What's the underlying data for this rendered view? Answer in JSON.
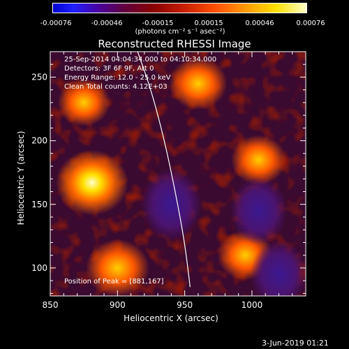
{
  "colorbar": {
    "ticks": [
      "-0.00076",
      "-0.00046",
      "-0.00015",
      "0.00015",
      "0.00046",
      "0.00076"
    ],
    "units": "(photons cm⁻² s⁻¹ asec⁻²)"
  },
  "annotations": {
    "time_range": "25-Sep-2014 04:04:34.000 to 04:10:34.000",
    "detectors": "Detectors: 3F 6F 9F, Att 0",
    "energy": "Energy Range: 12.0 - 25.0 keV",
    "method": "Clean     Total counts: 4.12E+03",
    "peak": "Position of Peak = [881,167]"
  },
  "footer": {
    "timestamp": "3-Jun-2019 01:21"
  },
  "colors": {
    "background": "#000000",
    "text": "#ffffff",
    "limb": "#ffffff"
  },
  "chart_data": {
    "type": "heatmap",
    "title": "Reconstructed RHESSI Image",
    "xlabel": "Heliocentric X (arcsec)",
    "ylabel": "Heliocentric Y (arcsec)",
    "xlim": [
      850,
      1040
    ],
    "ylim": [
      78,
      270
    ],
    "x_ticks": [
      "850",
      "900",
      "950",
      "1000"
    ],
    "y_ticks": [
      "100",
      "150",
      "200",
      "250"
    ],
    "x_tick_values": [
      850,
      900,
      950,
      1000
    ],
    "y_tick_values": [
      100,
      150,
      200,
      250
    ],
    "colormap_range": [
      -0.00076,
      0.00076
    ],
    "peak_position": [
      881,
      167
    ],
    "bright_regions": [
      {
        "x": 881,
        "y": 167,
        "value": 0.00076
      },
      {
        "x": 900,
        "y": 100,
        "value": 0.0006
      },
      {
        "x": 960,
        "y": 245,
        "value": 0.0005
      },
      {
        "x": 1005,
        "y": 185,
        "value": 0.00045
      },
      {
        "x": 995,
        "y": 110,
        "value": 0.00045
      },
      {
        "x": 875,
        "y": 230,
        "value": 0.0004
      }
    ],
    "dark_regions": [
      {
        "x": 940,
        "y": 150,
        "value": -0.00046
      },
      {
        "x": 1005,
        "y": 145,
        "value": -0.0004
      },
      {
        "x": 1020,
        "y": 95,
        "value": -0.0004
      }
    ],
    "limb_curve": [
      [
        915,
        270
      ],
      [
        925,
        240
      ],
      [
        935,
        200
      ],
      [
        943,
        160
      ],
      [
        950,
        120
      ],
      [
        954,
        85
      ]
    ],
    "grid": false
  }
}
